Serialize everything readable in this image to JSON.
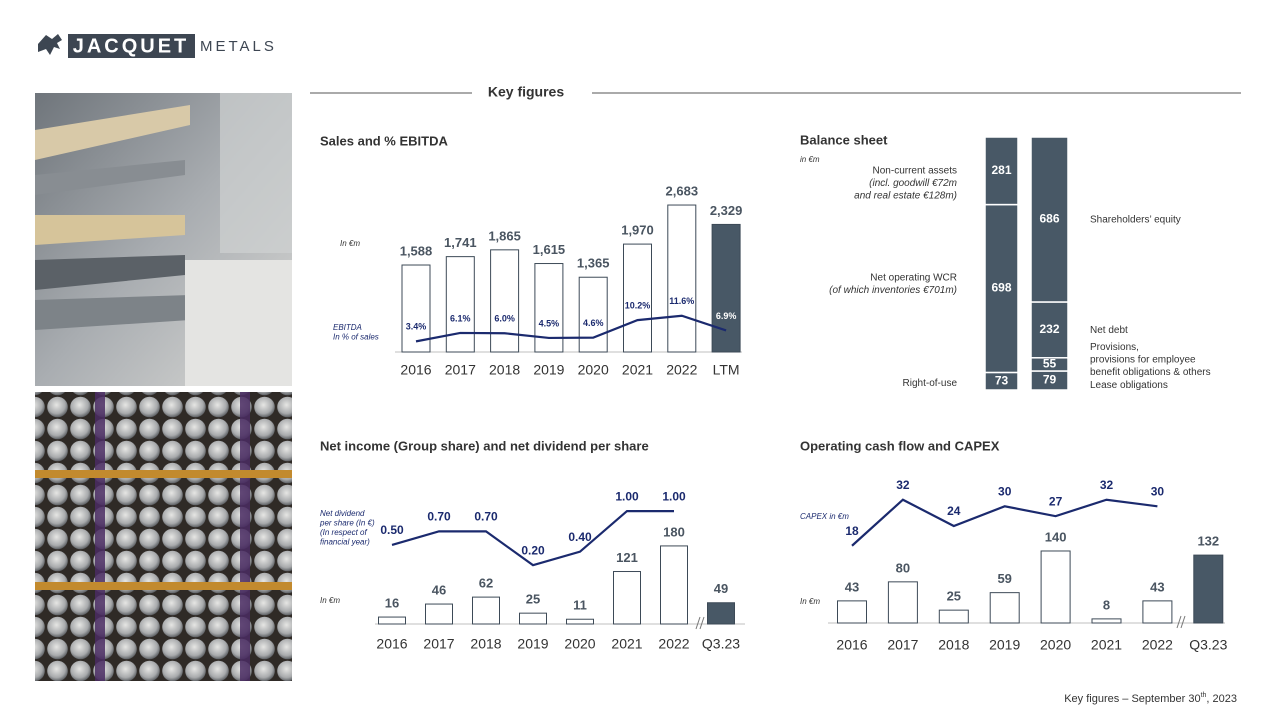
{
  "logo": {
    "name": "JACQUET",
    "suffix": "METALS"
  },
  "section_title": "Key figures",
  "footer": {
    "text": "Key figures – September 30",
    "superscript": "th",
    "end": ", 2023"
  },
  "chart_data": [
    {
      "type": "combo",
      "title": "Sales and % EBITDA",
      "unit_label": "In €m",
      "categories": [
        "2016",
        "2017",
        "2018",
        "2019",
        "2020",
        "2021",
        "2022",
        "LTM"
      ],
      "ylim": [
        0,
        3140
      ],
      "y2lim": [
        0,
        55
      ],
      "series": [
        {
          "type": "bar",
          "edge_color": "#3d4a57",
          "colors": [
            "#ffffff",
            "#ffffff",
            "#ffffff",
            "#ffffff",
            "#ffffff",
            "#ffffff",
            "#ffffff",
            "#485866"
          ],
          "values": [
            1588,
            1741,
            1865,
            1615,
            1365,
            1970,
            2683,
            2329
          ],
          "value_labels": [
            "1,588",
            "1,741",
            "1,865",
            "1,615",
            "1,365",
            "1,970",
            "2,683",
            "2,329"
          ]
        },
        {
          "type": "line",
          "axis": "y2",
          "color": "#1b2a6e",
          "name": [
            "EBITDA",
            "In % of sales"
          ],
          "values": [
            3.4,
            6.1,
            6.0,
            4.5,
            4.6,
            10.2,
            11.6,
            6.9
          ],
          "value_labels": [
            "3.4%",
            "6.1%",
            "6.0%",
            "4.5%",
            "4.6%",
            "10.2%",
            "11.6%",
            "6.9%"
          ]
        }
      ]
    },
    {
      "type": "balance",
      "title": "Balance sheet",
      "unit_label": "in €m",
      "color": "#485866",
      "ylim": [
        0,
        1052
      ],
      "bars": [
        {
          "segments": [
            {
              "value": 73,
              "label": [
                "Right-of-use"
              ]
            },
            {
              "value": 698,
              "label": [
                "Net operating WCR",
                "(of which inventories €701m)"
              ]
            },
            {
              "value": 281,
              "label": [
                "Non-current assets",
                "(incl. goodwill €72m",
                "and real estate €128m)"
              ]
            }
          ]
        },
        {
          "segments": [
            {
              "value": 79,
              "label": [
                "Lease obligations"
              ]
            },
            {
              "value": 55,
              "label": [
                "Provisions,",
                "provisions for employee",
                "benefit obligations & others"
              ]
            },
            {
              "value": 232,
              "label": [
                "Net debt"
              ]
            },
            {
              "value": 686,
              "label": [
                "Shareholders’ equity"
              ]
            }
          ]
        }
      ]
    },
    {
      "type": "combo",
      "title": "Net income (Group share) and net dividend per share",
      "unit_label": "In €m",
      "categories": [
        "2016",
        "2017",
        "2018",
        "2019",
        "2020",
        "2021",
        "2022",
        "Q3.23"
      ],
      "ylim": [
        0,
        332
      ],
      "y2lim": [
        -0.67,
        1.46
      ],
      "series": [
        {
          "type": "bar",
          "edge_color": "#3d4a57",
          "colors": [
            "#ffffff",
            "#ffffff",
            "#ffffff",
            "#ffffff",
            "#ffffff",
            "#ffffff",
            "#ffffff",
            "#485866"
          ],
          "values": [
            16,
            46,
            62,
            25,
            11,
            121,
            180,
            49
          ]
        },
        {
          "type": "line",
          "axis": "y2",
          "color": "#1b2a6e",
          "name": [
            "Net dividend",
            "per share (In €)",
            "(In respect of",
            "financial year)"
          ],
          "values": [
            0.5,
            0.7,
            0.7,
            0.2,
            0.4,
            1.0,
            1.0,
            null
          ],
          "value_labels": [
            "0.50",
            "0.70",
            "0.70",
            "0.20",
            "0.40",
            "1.00",
            "1.00",
            null
          ]
        }
      ]
    },
    {
      "type": "combo",
      "title": "Operating cash flow and CAPEX",
      "unit_label": "In €m",
      "categories": [
        "2016",
        "2017",
        "2018",
        "2019",
        "2020",
        "2021",
        "2022",
        "Q3.23"
      ],
      "ylim": [
        0,
        278
      ],
      "y2lim": [
        -5.5,
        38
      ],
      "series": [
        {
          "type": "bar",
          "edge_color": "#3d4a57",
          "colors": [
            "#ffffff",
            "#ffffff",
            "#ffffff",
            "#ffffff",
            "#ffffff",
            "#ffffff",
            "#ffffff",
            "#485866"
          ],
          "values": [
            43,
            80,
            25,
            59,
            140,
            8,
            43,
            132
          ]
        },
        {
          "type": "line",
          "axis": "y2",
          "color": "#1b2a6e",
          "name": [
            "CAPEX in €m"
          ],
          "values": [
            18,
            32,
            24,
            30,
            27,
            32,
            30,
            null
          ]
        }
      ]
    }
  ]
}
